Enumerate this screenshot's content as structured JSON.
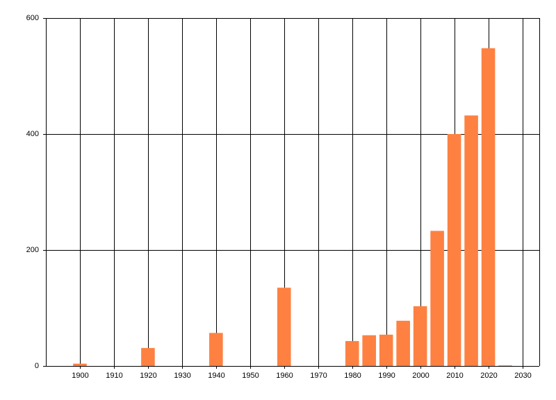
{
  "chart_data": {
    "type": "bar",
    "x": [
      1900,
      1920,
      1940,
      1960,
      1980,
      1985,
      1990,
      1995,
      2000,
      2005,
      2010,
      2015,
      2020,
      2025
    ],
    "values": [
      4,
      31,
      57,
      135,
      43,
      53,
      54,
      78,
      103,
      233,
      400,
      432,
      548,
      1
    ],
    "color": "#fe8141",
    "xlim": [
      1890,
      2035
    ],
    "xticks": [
      1900,
      1910,
      1920,
      1930,
      1940,
      1950,
      1960,
      1970,
      1980,
      1990,
      2000,
      2010,
      2020,
      2030
    ],
    "ylim": [
      0,
      600
    ],
    "yticks": [
      0,
      200,
      400,
      600
    ],
    "grid": true
  }
}
